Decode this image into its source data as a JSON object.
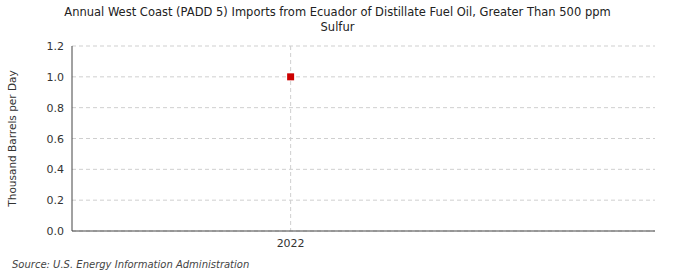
{
  "chart_data": {
    "type": "scatter",
    "title": "Annual West Coast (PADD 5) Imports from Ecuador of Distillate Fuel Oil, Greater Than 500 ppm\nSulfur",
    "y_label": "Thousand Barrels per Day",
    "annotations": [
      "Source: U.S. Energy Information Administration"
    ],
    "x": [
      2022
    ],
    "values": [
      1.0
    ],
    "color": "#cc0000",
    "marker": "square",
    "xlim": [
      2021.4,
      2023.0
    ],
    "xticks": [
      2022
    ],
    "ylim": [
      0.0,
      1.2
    ],
    "yticks": [
      {
        "value": 0.0,
        "label": "0.0"
      },
      0.2,
      0.4,
      0.6,
      0.8,
      {
        "value": 1.0,
        "label": "1.0"
      },
      1.2
    ],
    "grid": true
  }
}
